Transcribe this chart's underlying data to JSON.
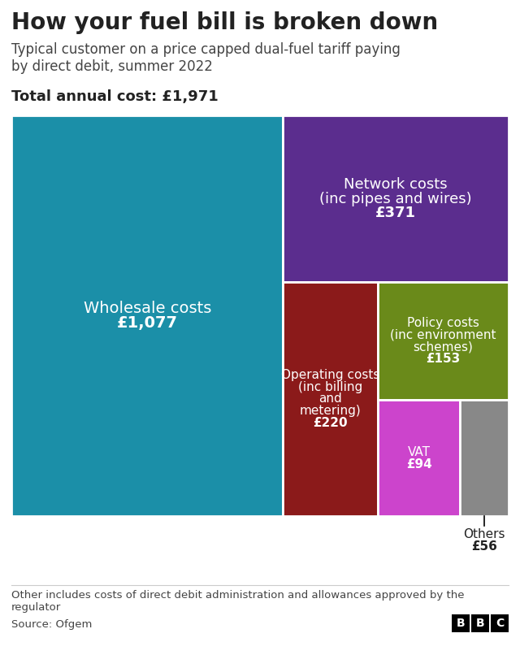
{
  "title": "How your fuel bill is broken down",
  "subtitle": "Typical customer on a price capped dual-fuel tariff paying\nby direct debit, summer 2022",
  "total_label": "Total annual cost: £1,971",
  "footer_note": "Other includes costs of direct debit administration and allowances approved by the\nregulator",
  "source": "Source: Ofgem",
  "segments": [
    {
      "label": "Wholesale costs",
      "value": 1077,
      "value_str": "£1,077",
      "color": "#1b8fa8"
    },
    {
      "label": "Network costs\n(inc pipes and wires)",
      "value": 371,
      "value_str": "£371",
      "color": "#5b2d8e"
    },
    {
      "label": "Operating costs\n(inc billing\nand\nmetering)",
      "value": 220,
      "value_str": "£220",
      "color": "#8b1a1a"
    },
    {
      "label": "Policy costs\n(inc environment\nschemes)",
      "value": 153,
      "value_str": "£153",
      "color": "#6a8a1a"
    },
    {
      "label": "VAT",
      "value": 94,
      "value_str": "£94",
      "color": "#cc44cc"
    },
    {
      "label": "Others",
      "value": 56,
      "value_str": "£56",
      "color": "#888888"
    }
  ],
  "total": 1971,
  "background_color": "#ffffff",
  "text_color_dark": "#222222",
  "text_color_white": "#ffffff"
}
